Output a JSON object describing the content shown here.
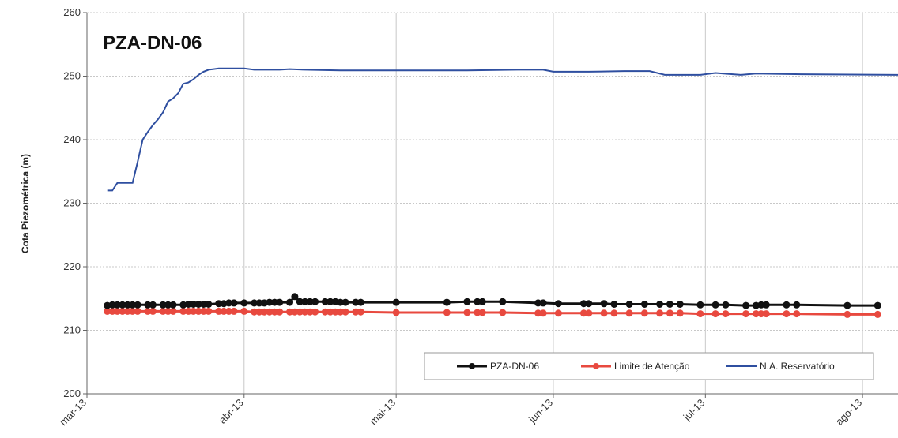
{
  "chart_data": {
    "type": "line",
    "title": "PZA-DN-06",
    "xlabel": "",
    "ylabel": "Cota Piezométrica (m)",
    "ylim": [
      200,
      260
    ],
    "yticks": [
      200,
      210,
      220,
      230,
      240,
      250,
      260
    ],
    "xlim": [
      "2013-03-01",
      "2013-08-08"
    ],
    "xticks": [
      {
        "date": "2013-03-01",
        "label": "mar-13"
      },
      {
        "date": "2013-04-01",
        "label": "abr-13"
      },
      {
        "date": "2013-05-01",
        "label": "mai-13"
      },
      {
        "date": "2013-06-01",
        "label": "jun-13"
      },
      {
        "date": "2013-07-01",
        "label": "jul-13"
      },
      {
        "date": "2013-08-01",
        "label": "ago-13"
      }
    ],
    "grid": true,
    "legend_position": "bottom-right",
    "series": [
      {
        "name": "PZA-DN-06",
        "color": "#111111",
        "marker": "circle",
        "points": [
          [
            "2013-03-05",
            213.9
          ],
          [
            "2013-03-06",
            214.0
          ],
          [
            "2013-03-07",
            214.0
          ],
          [
            "2013-03-08",
            214.0
          ],
          [
            "2013-03-09",
            214.0
          ],
          [
            "2013-03-10",
            214.0
          ],
          [
            "2013-03-11",
            214.0
          ],
          [
            "2013-03-13",
            214.0
          ],
          [
            "2013-03-14",
            214.0
          ],
          [
            "2013-03-16",
            214.0
          ],
          [
            "2013-03-17",
            214.0
          ],
          [
            "2013-03-18",
            214.0
          ],
          [
            "2013-03-20",
            214.0
          ],
          [
            "2013-03-21",
            214.1
          ],
          [
            "2013-03-22",
            214.1
          ],
          [
            "2013-03-23",
            214.1
          ],
          [
            "2013-03-24",
            214.1
          ],
          [
            "2013-03-25",
            214.1
          ],
          [
            "2013-03-27",
            214.2
          ],
          [
            "2013-03-28",
            214.2
          ],
          [
            "2013-03-29",
            214.3
          ],
          [
            "2013-03-30",
            214.3
          ],
          [
            "2013-04-01",
            214.3
          ],
          [
            "2013-04-03",
            214.3
          ],
          [
            "2013-04-04",
            214.3
          ],
          [
            "2013-04-05",
            214.3
          ],
          [
            "2013-04-06",
            214.4
          ],
          [
            "2013-04-07",
            214.4
          ],
          [
            "2013-04-08",
            214.4
          ],
          [
            "2013-04-10",
            214.4
          ],
          [
            "2013-04-11",
            215.3
          ],
          [
            "2013-04-12",
            214.5
          ],
          [
            "2013-04-13",
            214.5
          ],
          [
            "2013-04-14",
            214.5
          ],
          [
            "2013-04-15",
            214.5
          ],
          [
            "2013-04-17",
            214.5
          ],
          [
            "2013-04-18",
            214.5
          ],
          [
            "2013-04-19",
            214.5
          ],
          [
            "2013-04-20",
            214.4
          ],
          [
            "2013-04-21",
            214.4
          ],
          [
            "2013-04-23",
            214.4
          ],
          [
            "2013-04-24",
            214.4
          ],
          [
            "2013-05-01",
            214.4
          ],
          [
            "2013-05-11",
            214.4
          ],
          [
            "2013-05-15",
            214.5
          ],
          [
            "2013-05-17",
            214.5
          ],
          [
            "2013-05-18",
            214.5
          ],
          [
            "2013-05-22",
            214.5
          ],
          [
            "2013-05-29",
            214.3
          ],
          [
            "2013-05-30",
            214.3
          ],
          [
            "2013-06-02",
            214.2
          ],
          [
            "2013-06-07",
            214.2
          ],
          [
            "2013-06-08",
            214.2
          ],
          [
            "2013-06-11",
            214.2
          ],
          [
            "2013-06-13",
            214.1
          ],
          [
            "2013-06-16",
            214.1
          ],
          [
            "2013-06-19",
            214.1
          ],
          [
            "2013-06-22",
            214.1
          ],
          [
            "2013-06-24",
            214.1
          ],
          [
            "2013-06-26",
            214.1
          ],
          [
            "2013-06-30",
            214.0
          ],
          [
            "2013-07-03",
            214.0
          ],
          [
            "2013-07-05",
            214.0
          ],
          [
            "2013-07-09",
            213.9
          ],
          [
            "2013-07-11",
            213.9
          ],
          [
            "2013-07-12",
            214.0
          ],
          [
            "2013-07-13",
            214.0
          ],
          [
            "2013-07-17",
            214.0
          ],
          [
            "2013-07-19",
            214.0
          ],
          [
            "2013-07-29",
            213.9
          ],
          [
            "2013-08-04",
            213.9
          ]
        ]
      },
      {
        "name": "Limite de Atenção",
        "color": "#e8493f",
        "marker": "circle",
        "points": [
          [
            "2013-03-05",
            213.0
          ],
          [
            "2013-03-06",
            213.0
          ],
          [
            "2013-03-07",
            213.0
          ],
          [
            "2013-03-08",
            213.0
          ],
          [
            "2013-03-09",
            213.0
          ],
          [
            "2013-03-10",
            213.0
          ],
          [
            "2013-03-11",
            213.0
          ],
          [
            "2013-03-13",
            213.0
          ],
          [
            "2013-03-14",
            213.0
          ],
          [
            "2013-03-16",
            213.0
          ],
          [
            "2013-03-17",
            213.0
          ],
          [
            "2013-03-18",
            213.0
          ],
          [
            "2013-03-20",
            213.0
          ],
          [
            "2013-03-21",
            213.0
          ],
          [
            "2013-03-22",
            213.0
          ],
          [
            "2013-03-23",
            213.0
          ],
          [
            "2013-03-24",
            213.0
          ],
          [
            "2013-03-25",
            213.0
          ],
          [
            "2013-03-27",
            213.0
          ],
          [
            "2013-03-28",
            213.0
          ],
          [
            "2013-03-29",
            213.0
          ],
          [
            "2013-03-30",
            213.0
          ],
          [
            "2013-04-01",
            213.0
          ],
          [
            "2013-04-03",
            212.9
          ],
          [
            "2013-04-04",
            212.9
          ],
          [
            "2013-04-05",
            212.9
          ],
          [
            "2013-04-06",
            212.9
          ],
          [
            "2013-04-07",
            212.9
          ],
          [
            "2013-04-08",
            212.9
          ],
          [
            "2013-04-10",
            212.9
          ],
          [
            "2013-04-11",
            212.9
          ],
          [
            "2013-04-12",
            212.9
          ],
          [
            "2013-04-13",
            212.9
          ],
          [
            "2013-04-14",
            212.9
          ],
          [
            "2013-04-15",
            212.9
          ],
          [
            "2013-04-17",
            212.9
          ],
          [
            "2013-04-18",
            212.9
          ],
          [
            "2013-04-19",
            212.9
          ],
          [
            "2013-04-20",
            212.9
          ],
          [
            "2013-04-21",
            212.9
          ],
          [
            "2013-04-23",
            212.9
          ],
          [
            "2013-04-24",
            212.9
          ],
          [
            "2013-05-01",
            212.8
          ],
          [
            "2013-05-11",
            212.8
          ],
          [
            "2013-05-15",
            212.8
          ],
          [
            "2013-05-17",
            212.8
          ],
          [
            "2013-05-18",
            212.8
          ],
          [
            "2013-05-22",
            212.8
          ],
          [
            "2013-05-29",
            212.7
          ],
          [
            "2013-05-30",
            212.7
          ],
          [
            "2013-06-02",
            212.7
          ],
          [
            "2013-06-07",
            212.7
          ],
          [
            "2013-06-08",
            212.7
          ],
          [
            "2013-06-11",
            212.7
          ],
          [
            "2013-06-13",
            212.7
          ],
          [
            "2013-06-16",
            212.7
          ],
          [
            "2013-06-19",
            212.7
          ],
          [
            "2013-06-22",
            212.7
          ],
          [
            "2013-06-24",
            212.7
          ],
          [
            "2013-06-26",
            212.7
          ],
          [
            "2013-06-30",
            212.6
          ],
          [
            "2013-07-03",
            212.6
          ],
          [
            "2013-07-05",
            212.6
          ],
          [
            "2013-07-09",
            212.6
          ],
          [
            "2013-07-11",
            212.6
          ],
          [
            "2013-07-12",
            212.6
          ],
          [
            "2013-07-13",
            212.6
          ],
          [
            "2013-07-17",
            212.6
          ],
          [
            "2013-07-19",
            212.6
          ],
          [
            "2013-07-29",
            212.5
          ],
          [
            "2013-08-04",
            212.5
          ]
        ]
      },
      {
        "name": "N.A. Reservatório",
        "color": "#2f4fa0",
        "marker": "none",
        "points": [
          [
            "2013-03-05",
            232.0
          ],
          [
            "2013-03-06",
            232.0
          ],
          [
            "2013-03-07",
            233.2
          ],
          [
            "2013-03-08",
            233.2
          ],
          [
            "2013-03-09",
            233.2
          ],
          [
            "2013-03-10",
            233.2
          ],
          [
            "2013-03-11",
            236.5
          ],
          [
            "2013-03-12",
            240.0
          ],
          [
            "2013-03-13",
            241.2
          ],
          [
            "2013-03-14",
            242.3
          ],
          [
            "2013-03-15",
            243.2
          ],
          [
            "2013-03-16",
            244.3
          ],
          [
            "2013-03-17",
            246.0
          ],
          [
            "2013-03-18",
            246.5
          ],
          [
            "2013-03-19",
            247.3
          ],
          [
            "2013-03-20",
            248.8
          ],
          [
            "2013-03-21",
            249.0
          ],
          [
            "2013-03-22",
            249.5
          ],
          [
            "2013-03-23",
            250.2
          ],
          [
            "2013-03-24",
            250.7
          ],
          [
            "2013-03-25",
            251.0
          ],
          [
            "2013-03-26",
            251.1
          ],
          [
            "2013-03-27",
            251.2
          ],
          [
            "2013-04-01",
            251.2
          ],
          [
            "2013-04-03",
            251.0
          ],
          [
            "2013-04-08",
            251.0
          ],
          [
            "2013-04-10",
            251.1
          ],
          [
            "2013-04-13",
            251.0
          ],
          [
            "2013-04-20",
            250.9
          ],
          [
            "2013-05-01",
            250.9
          ],
          [
            "2013-05-15",
            250.9
          ],
          [
            "2013-05-25",
            251.0
          ],
          [
            "2013-05-30",
            251.0
          ],
          [
            "2013-06-01",
            250.7
          ],
          [
            "2013-06-08",
            250.7
          ],
          [
            "2013-06-15",
            250.8
          ],
          [
            "2013-06-20",
            250.8
          ],
          [
            "2013-06-23",
            250.2
          ],
          [
            "2013-06-30",
            250.2
          ],
          [
            "2013-07-03",
            250.5
          ],
          [
            "2013-07-08",
            250.2
          ],
          [
            "2013-07-11",
            250.4
          ],
          [
            "2013-07-20",
            250.3
          ],
          [
            "2013-08-08",
            250.2
          ]
        ]
      }
    ]
  }
}
